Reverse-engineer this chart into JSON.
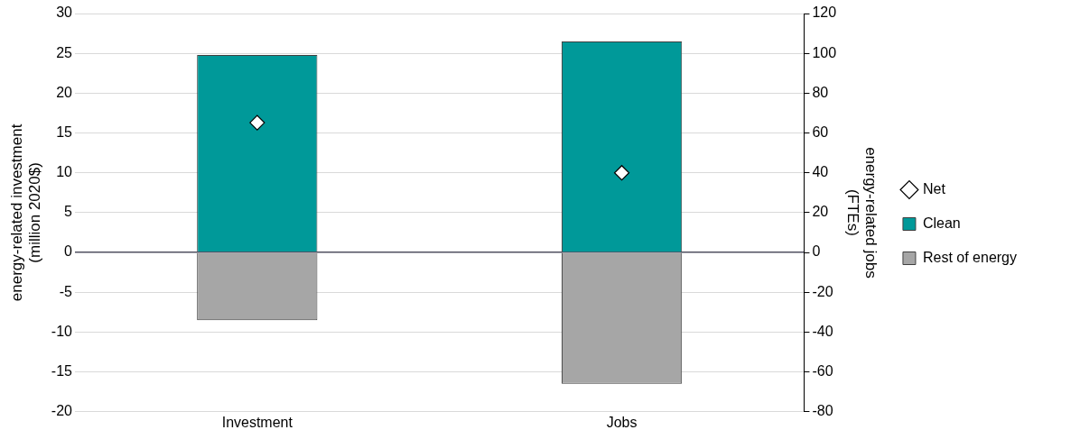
{
  "chart_data": {
    "type": "bar",
    "stacked": true,
    "categories": [
      "Investment",
      "Jobs"
    ],
    "ylabel": "energy-related investment (million 2020$)",
    "y2label": "energy-related jobs (FTEs)",
    "ylim": [
      -20,
      30
    ],
    "yticks": [
      -20,
      -15,
      -10,
      -5,
      0,
      5,
      10,
      15,
      20,
      25,
      30
    ],
    "y2lim": [
      -80,
      120
    ],
    "y2ticks": [
      -80,
      -60,
      -40,
      -20,
      0,
      20,
      40,
      60,
      80,
      100,
      120
    ],
    "grid": "y",
    "legend": "right",
    "series": [
      {
        "name": "Clean",
        "color": "#009999",
        "values": [
          24.8,
          null
        ]
      },
      {
        "name": "Rest of energy",
        "color": "#a6a6a6",
        "values": [
          -8.5,
          null
        ]
      },
      {
        "name": "Net",
        "type": "scatter",
        "marker": "diamond",
        "color": "#ffffff",
        "values": [
          16.3,
          null
        ]
      },
      {
        "color": "#009999",
        "axis": "y2",
        "values": [
          null,
          106
        ]
      },
      {
        "color": "#a6a6a6",
        "axis": "y2",
        "values": [
          null,
          -66
        ]
      },
      {
        "type": "scatter",
        "marker": "diamond",
        "color": "#ffffff",
        "axis": "y2",
        "values": [
          null,
          40
        ]
      }
    ]
  }
}
